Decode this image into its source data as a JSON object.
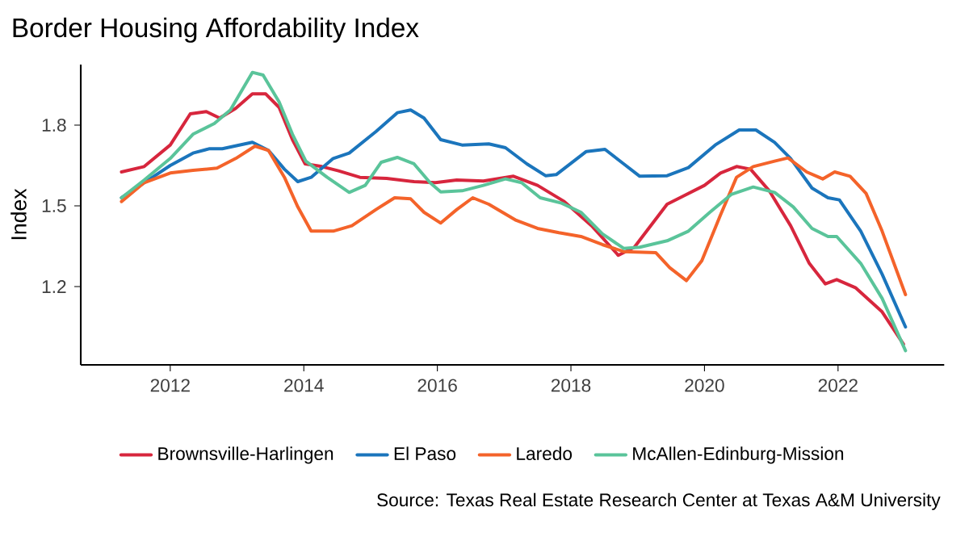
{
  "chart_data": {
    "type": "line",
    "title": "Border Housing Affordability Index",
    "ylabel": "Index",
    "xlim": [
      2010.66,
      2023.59
    ],
    "ylim": [
      0.909,
      2.025
    ],
    "xticks": [
      2012,
      2014,
      2016,
      2018,
      2020,
      2022
    ],
    "yticks": [
      1.2,
      1.5,
      1.8
    ],
    "grid": false,
    "legend": "bottom",
    "line_style": "solid",
    "marker": "none",
    "annotations": [
      "Source: Texas Real Estate Research Center at Texas A&M University"
    ],
    "series": [
      {
        "name": "Brownsville-Harlingen",
        "color": "#d7263d",
        "x": [
          2011.27,
          2011.61,
          2012,
          2012.3,
          2012.54,
          2012.74,
          2012.98,
          2013.23,
          2013.43,
          2013.63,
          2013.83,
          2014.02,
          2014.27,
          2014.52,
          2014.84,
          2015.24,
          2015.65,
          2015.97,
          2016.29,
          2016.69,
          2017.14,
          2017.5,
          2017.9,
          2018.31,
          2018.71,
          2018.95,
          2019.44,
          2019.68,
          2020,
          2020.24,
          2020.48,
          2020.69,
          2020.97,
          2021.29,
          2021.57,
          2021.81,
          2021.98,
          2022.26,
          2022.66,
          2022.98
        ],
        "values": [
          1.626,
          1.646,
          1.726,
          1.842,
          1.85,
          1.826,
          1.862,
          1.916,
          1.916,
          1.866,
          1.746,
          1.656,
          1.646,
          1.63,
          1.606,
          1.602,
          1.59,
          1.586,
          1.596,
          1.592,
          1.61,
          1.576,
          1.516,
          1.426,
          1.316,
          1.346,
          1.506,
          1.536,
          1.576,
          1.622,
          1.646,
          1.636,
          1.556,
          1.426,
          1.286,
          1.21,
          1.226,
          1.196,
          1.106,
          0.986
        ]
      },
      {
        "name": "El Paso",
        "color": "#1b75bc",
        "x": [
          2011.27,
          2011.61,
          2012,
          2012.34,
          2012.58,
          2012.78,
          2013.23,
          2013.47,
          2013.71,
          2013.91,
          2014.11,
          2014.44,
          2014.68,
          2015.08,
          2015.4,
          2015.6,
          2015.8,
          2016.05,
          2016.37,
          2016.77,
          2017.02,
          2017.34,
          2017.62,
          2017.78,
          2018.23,
          2018.51,
          2018.79,
          2019.03,
          2019.44,
          2019.76,
          2020.16,
          2020.52,
          2020.77,
          2021.05,
          2021.29,
          2021.61,
          2021.85,
          2022.02,
          2022.34,
          2022.66,
          2023.01
        ],
        "values": [
          1.53,
          1.586,
          1.65,
          1.696,
          1.712,
          1.712,
          1.736,
          1.706,
          1.636,
          1.59,
          1.606,
          1.676,
          1.696,
          1.776,
          1.846,
          1.856,
          1.826,
          1.746,
          1.726,
          1.73,
          1.716,
          1.656,
          1.612,
          1.616,
          1.702,
          1.71,
          1.656,
          1.61,
          1.612,
          1.642,
          1.726,
          1.782,
          1.782,
          1.736,
          1.676,
          1.566,
          1.53,
          1.522,
          1.406,
          1.246,
          1.05
        ]
      },
      {
        "name": "Laredo",
        "color": "#f4632a",
        "x": [
          2011.27,
          2011.61,
          2012,
          2012.34,
          2012.7,
          2012.98,
          2013.27,
          2013.47,
          2013.71,
          2013.91,
          2014.11,
          2014.44,
          2014.72,
          2015.08,
          2015.36,
          2015.6,
          2015.8,
          2016.05,
          2016.29,
          2016.53,
          2016.77,
          2017.18,
          2017.5,
          2017.82,
          2018.15,
          2018.47,
          2018.79,
          2019.27,
          2019.48,
          2019.73,
          2019.96,
          2020.24,
          2020.48,
          2020.73,
          2021.05,
          2021.25,
          2021.53,
          2021.77,
          2021.95,
          2022.18,
          2022.42,
          2022.66,
          2023.01
        ],
        "values": [
          1.516,
          1.586,
          1.622,
          1.632,
          1.64,
          1.676,
          1.722,
          1.706,
          1.606,
          1.496,
          1.406,
          1.406,
          1.426,
          1.486,
          1.53,
          1.526,
          1.476,
          1.436,
          1.486,
          1.53,
          1.506,
          1.446,
          1.416,
          1.4,
          1.386,
          1.356,
          1.33,
          1.326,
          1.27,
          1.222,
          1.296,
          1.466,
          1.606,
          1.646,
          1.666,
          1.678,
          1.626,
          1.6,
          1.626,
          1.61,
          1.546,
          1.406,
          1.17
        ]
      },
      {
        "name": "McAllen-Edinburg-Mission",
        "color": "#5ac49a",
        "x": [
          2011.27,
          2011.61,
          2012,
          2012.34,
          2012.66,
          2012.9,
          2013.23,
          2013.39,
          2013.63,
          2013.83,
          2014.03,
          2014.35,
          2014.68,
          2014.92,
          2015.16,
          2015.4,
          2015.65,
          2015.89,
          2016.05,
          2016.37,
          2016.69,
          2017.02,
          2017.26,
          2017.54,
          2017.86,
          2018.15,
          2018.47,
          2018.79,
          2019.03,
          2019.44,
          2019.76,
          2020.08,
          2020.4,
          2020.73,
          2021.05,
          2021.33,
          2021.61,
          2021.85,
          2021.98,
          2022.34,
          2022.66,
          2023.01
        ],
        "values": [
          1.53,
          1.596,
          1.676,
          1.766,
          1.806,
          1.856,
          1.996,
          1.986,
          1.886,
          1.766,
          1.666,
          1.606,
          1.55,
          1.576,
          1.662,
          1.68,
          1.656,
          1.586,
          1.552,
          1.556,
          1.576,
          1.6,
          1.586,
          1.53,
          1.51,
          1.476,
          1.396,
          1.342,
          1.346,
          1.37,
          1.406,
          1.476,
          1.542,
          1.57,
          1.55,
          1.496,
          1.416,
          1.386,
          1.386,
          1.286,
          1.156,
          0.962
        ]
      }
    ]
  }
}
